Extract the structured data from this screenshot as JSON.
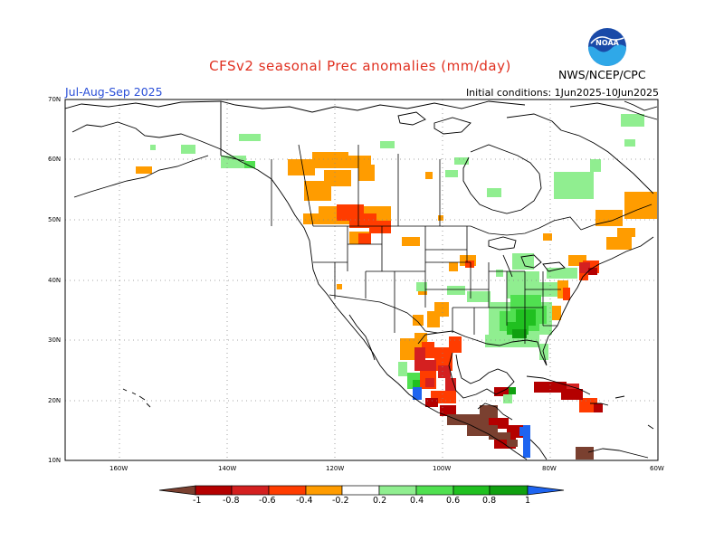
{
  "header": {
    "title": "CFSv2 seasonal Prec anomalies (mm/day)",
    "agency": "NWS/NCEP/CPC",
    "period": "Jul-Aug-Sep 2025",
    "initial_conditions": "Initial conditions: 1Jun2025-10Jun2025",
    "logo_text": "NOAA"
  },
  "axes": {
    "lat_labels": [
      "70N",
      "60N",
      "50N",
      "40N",
      "30N",
      "20N",
      "10N"
    ],
    "lon_labels": [
      "160W",
      "140W",
      "120W",
      "100W",
      "80W",
      "60W"
    ]
  },
  "colorbar": {
    "labels": [
      "-1",
      "-0.8",
      "-0.6",
      "-0.4",
      "-0.2",
      "0.2",
      "0.4",
      "0.6",
      "0.8",
      "1"
    ],
    "colors": [
      "#7a4030",
      "#b40000",
      "#d42020",
      "#ff3c00",
      "#ff9c00",
      "#ffffff",
      "#90ee90",
      "#50e050",
      "#20c020",
      "#10a010",
      "#1e64f0"
    ]
  },
  "colors": {
    "dry_strong": "#7a4030",
    "dry": "#b40000",
    "dry_moderate": "#d42020",
    "dry_light": "#ff3c00",
    "dry_weak": "#ff9c00",
    "wet_weak": "#90ee90",
    "wet_light": "#50e050",
    "wet_moderate": "#20c020",
    "wet": "#10a010",
    "wet_strong": "#1e64f0"
  }
}
